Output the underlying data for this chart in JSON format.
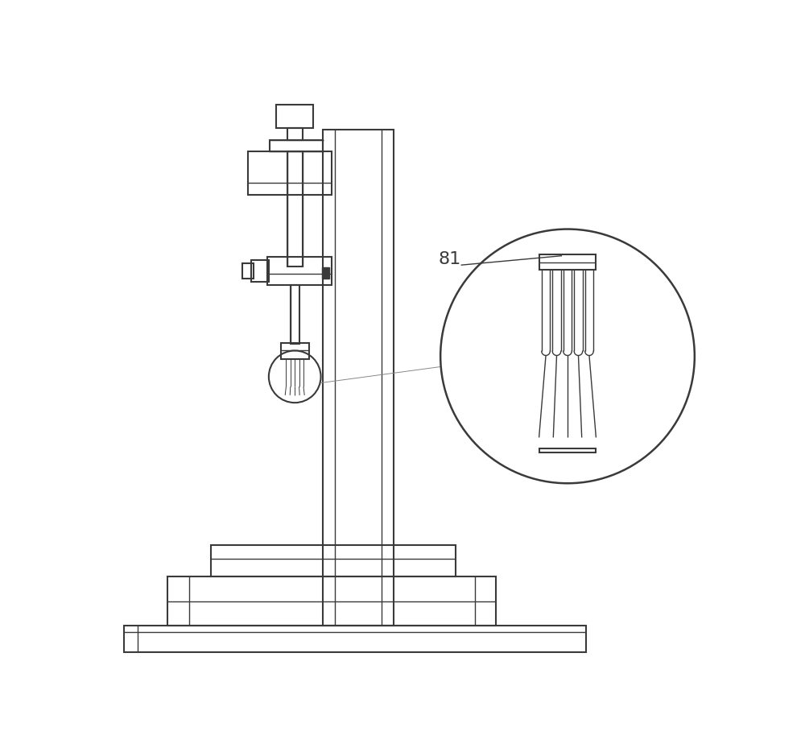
{
  "bg_color": "#ffffff",
  "lc": "#3a3a3a",
  "lw": 1.5,
  "lw_i": 1.0,
  "lw_t": 0.7,
  "label_81": "81",
  "label_fs": 16,
  "fig_w": 10.0,
  "fig_h": 9.34,
  "dpi": 100,
  "xlim": [
    0,
    10
  ],
  "ylim": [
    0,
    9.34
  ]
}
